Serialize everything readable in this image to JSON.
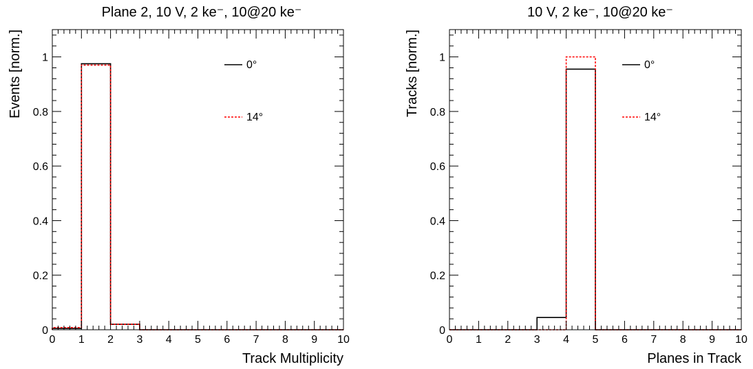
{
  "chart_data": [
    {
      "type": "histogram",
      "title": "Plane 2, 10 V, 2 ke⁻, 10@20 ke⁻",
      "xlabel": "Track Multiplicity",
      "ylabel": "Events [norm.]",
      "xlim": [
        0,
        10
      ],
      "ylim": [
        0,
        1.1
      ],
      "x_ticks": [
        "0",
        "1",
        "2",
        "3",
        "4",
        "5",
        "6",
        "7",
        "8",
        "9",
        "10"
      ],
      "y_ticks": [
        "0",
        "0.2",
        "0.4",
        "0.6",
        "0.8",
        "1"
      ],
      "grid": false,
      "legend_position": "top-right",
      "bin_edges": [
        0,
        1,
        2,
        3,
        4,
        5,
        6,
        7,
        8,
        9,
        10
      ],
      "series": [
        {
          "name": "0°",
          "color": "#000000",
          "line_style": "solid",
          "values": [
            0.005,
            0.975,
            0.02,
            0.0,
            0.0,
            0.0,
            0.0,
            0.0,
            0.0,
            0.0
          ]
        },
        {
          "name": "14°",
          "color": "#ff0000",
          "line_style": "dashed",
          "values": [
            0.008,
            0.97,
            0.02,
            0.0,
            0.0,
            0.0,
            0.0,
            0.0,
            0.0,
            0.0
          ]
        }
      ]
    },
    {
      "type": "histogram",
      "title": "10 V, 2 ke⁻, 10@20 ke⁻",
      "xlabel": "Planes in Track",
      "ylabel": "Tracks [norm.]",
      "xlim": [
        0,
        10
      ],
      "ylim": [
        0,
        1.1
      ],
      "x_ticks": [
        "0",
        "1",
        "2",
        "3",
        "4",
        "5",
        "6",
        "7",
        "8",
        "9",
        "10"
      ],
      "y_ticks": [
        "0",
        "0.2",
        "0.4",
        "0.6",
        "0.8",
        "1"
      ],
      "grid": false,
      "legend_position": "top-right",
      "bin_edges": [
        0,
        1,
        2,
        3,
        4,
        5,
        6,
        7,
        8,
        9,
        10
      ],
      "series": [
        {
          "name": "0°",
          "color": "#000000",
          "line_style": "solid",
          "values": [
            0.0,
            0.0,
            0.0,
            0.045,
            0.955,
            0.0,
            0.0,
            0.0,
            0.0,
            0.0
          ]
        },
        {
          "name": "14°",
          "color": "#ff0000",
          "line_style": "dashed",
          "values": [
            0.0,
            0.0,
            0.0,
            0.0,
            1.0,
            0.0,
            0.0,
            0.0,
            0.0,
            0.0
          ]
        }
      ]
    }
  ]
}
